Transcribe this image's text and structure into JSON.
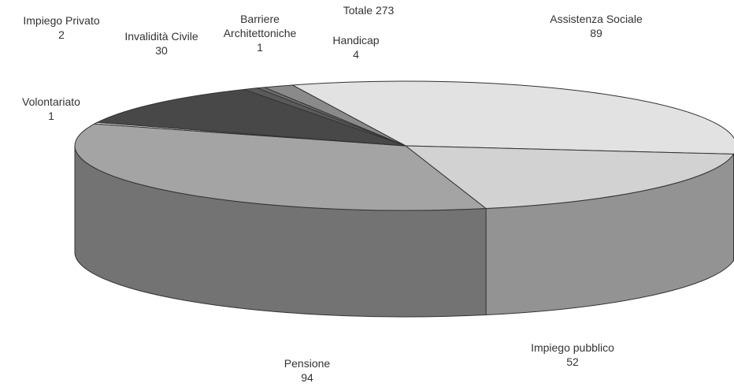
{
  "chart_data": {
    "type": "pie3d",
    "title": "Totale 273",
    "categories": [
      "Assistenza Sociale",
      "Impiego pubblico",
      "Pensione",
      "Volontariato",
      "Invalidità Civile",
      "Impiego Privato",
      "Barriere Architettoniche",
      "Handicap"
    ],
    "values": [
      89,
      52,
      94,
      1,
      30,
      2,
      1,
      4
    ],
    "colors": [
      "#e2e2e2",
      "#d2d2d2",
      "#a4a4a4",
      "#f4f4f4",
      "#484848",
      "#5a5a5a",
      "#6e6e6e",
      "#8a8a8a"
    ]
  }
}
